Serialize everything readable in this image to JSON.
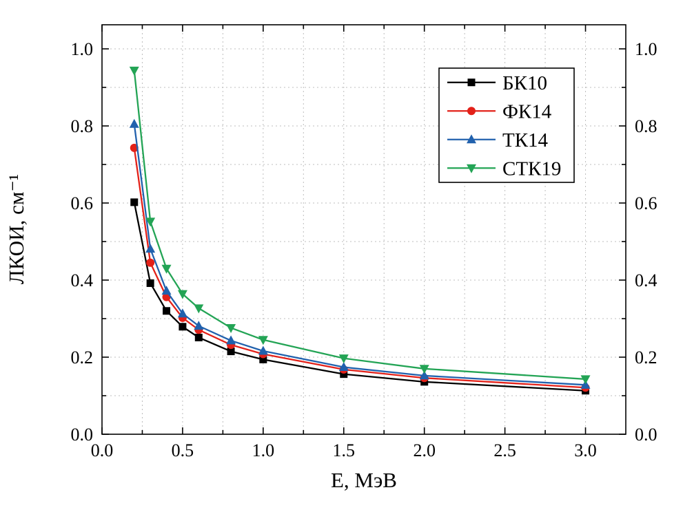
{
  "figure": {
    "background": "#ffffff",
    "frame_color": "#000000",
    "grid_color": "#bdbdbd"
  },
  "chart_data": {
    "type": "line",
    "title": "",
    "xlabel": "E, МэВ",
    "ylabel": "ЛКОИ, см⁻¹",
    "xlim": [
      0,
      3.25
    ],
    "ylim": [
      0,
      1.0625
    ],
    "x_major_ticks": [
      0.0,
      0.5,
      1.0,
      1.5,
      2.0,
      2.5,
      3.0
    ],
    "x_minor_step": 0.25,
    "y_major_ticks": [
      0.0,
      0.2,
      0.4,
      0.6,
      0.8,
      1.0
    ],
    "y_minor_step": 0.1,
    "grid": "dashed minor+major grid",
    "legend_position": "top-right-inside",
    "x": [
      0.2,
      0.3,
      0.4,
      0.5,
      0.6,
      0.8,
      1.0,
      1.5,
      2.0,
      3.0
    ],
    "series": [
      {
        "name": "БК10",
        "color": "#000000",
        "marker": "square",
        "values": [
          0.602,
          0.392,
          0.32,
          0.279,
          0.251,
          0.215,
          0.194,
          0.156,
          0.136,
          0.113
        ]
      },
      {
        "name": "ФК14",
        "color": "#e32119",
        "marker": "circle",
        "values": [
          0.743,
          0.445,
          0.356,
          0.302,
          0.271,
          0.232,
          0.208,
          0.168,
          0.146,
          0.121
        ]
      },
      {
        "name": "ТК14",
        "color": "#2161ad",
        "marker": "triangle-up",
        "values": [
          0.805,
          0.481,
          0.372,
          0.313,
          0.281,
          0.243,
          0.216,
          0.174,
          0.152,
          0.128
        ]
      },
      {
        "name": "СТК19",
        "color": "#23a455",
        "marker": "triangle-down",
        "values": [
          0.944,
          0.552,
          0.43,
          0.364,
          0.327,
          0.276,
          0.245,
          0.197,
          0.17,
          0.143
        ]
      }
    ]
  }
}
